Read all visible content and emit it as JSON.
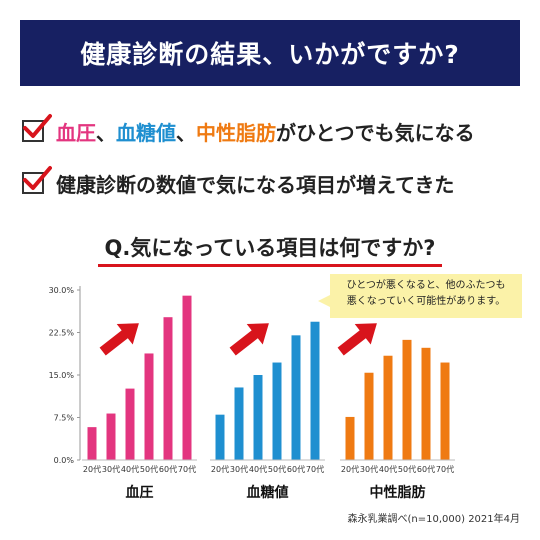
{
  "banner": {
    "title": "健康診断の結果、いかがですか?"
  },
  "checklist": {
    "item1": {
      "blood_pressure": "血圧",
      "sep1": "、",
      "blood_sugar": "血糖値",
      "sep2": "、",
      "triglyceride": "中性脂肪",
      "suffix": "がひとつでも気になる"
    },
    "item2": {
      "text": "健康診断の数値で気になる項目が増えてきた"
    }
  },
  "question": {
    "title": "Q.気になっている項目は何ですか?"
  },
  "callout": {
    "line1": "ひとつが悪くなると、他のふたつも",
    "line2": "悪くなっていく可能性があります。"
  },
  "source": "森永乳業調べ(n=10,000) 2021年4月",
  "colors": {
    "banner": "#172062",
    "blood_pressure": "#e3357f",
    "blood_sugar": "#1f8fd0",
    "triglyceride": "#ef7a12",
    "accent_red": "#d8141c",
    "callout_bg": "#fbf2a8"
  },
  "icons": {
    "check": "red-check-icon",
    "trend": "up-arrow-icon"
  },
  "chart_data": {
    "type": "bar",
    "ylim": [
      0,
      30
    ],
    "y_ticks": [
      "0.0%",
      "7.5%",
      "15.0%",
      "22.5%",
      "30.0%"
    ],
    "y_tick_values": [
      0,
      7.5,
      15,
      22.5,
      30
    ],
    "grid": false,
    "categories": [
      "20代",
      "30代",
      "40代",
      "50代",
      "60代",
      "70代"
    ],
    "groups": [
      {
        "label": "血圧",
        "color": "#e3357f",
        "values": [
          5.8,
          8.2,
          12.6,
          18.8,
          25.2,
          29.0
        ]
      },
      {
        "label": "血糖値",
        "color": "#1f8fd0",
        "values": [
          8.0,
          12.8,
          15.0,
          17.2,
          22.0,
          24.4
        ]
      },
      {
        "label": "中性脂肪",
        "color": "#ef7a12",
        "values": [
          7.6,
          15.4,
          18.4,
          21.2,
          19.8,
          17.2
        ]
      }
    ]
  }
}
